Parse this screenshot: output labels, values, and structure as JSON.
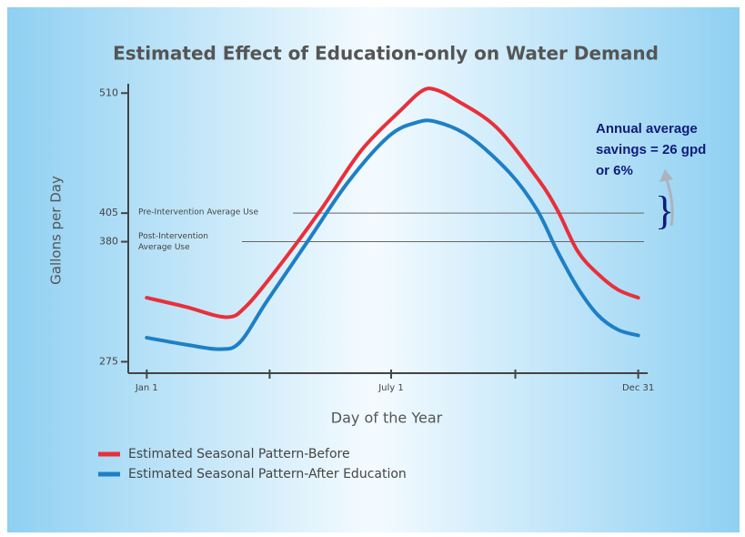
{
  "chart_data": {
    "type": "line",
    "title": "Estimated Effect of Education-only on Water Demand",
    "y_label": "Gallons per Day",
    "x_label": "Day of the Year",
    "xlim": [
      -10,
      372
    ],
    "xticks": [
      {
        "value": 1,
        "label": "Jan 1"
      },
      {
        "value": 182,
        "label": "July 1"
      },
      {
        "value": 365,
        "label": "Dec 31"
      }
    ],
    "xminorticks": [
      92,
      274
    ],
    "ylim": [
      265,
      515
    ],
    "yticks": [
      275,
      380,
      405,
      510
    ],
    "series": [
      {
        "name": "Estimated Seasonal Pattern-Before",
        "color": "#e8303a",
        "x": [
          1,
          30,
          60,
          75,
          100,
          130,
          160,
          190,
          205,
          215,
          230,
          260,
          290,
          305,
          320,
          335,
          350,
          365
        ],
        "values": [
          331,
          323,
          314,
          324,
          360,
          408,
          460,
          496,
          512,
          513,
          504,
          480,
          436,
          408,
          372,
          352,
          338,
          331
        ]
      },
      {
        "name": "Estimated Seasonal Pattern-After Education",
        "color": "#1e7fc6",
        "x": [
          1,
          30,
          55,
          70,
          90,
          120,
          150,
          180,
          200,
          215,
          240,
          270,
          290,
          305,
          320,
          335,
          350,
          365
        ],
        "values": [
          296,
          290,
          286,
          292,
          328,
          380,
          432,
          472,
          484,
          485,
          472,
          440,
          408,
          372,
          340,
          316,
          303,
          298
        ]
      }
    ],
    "reference_lines": [
      {
        "value": 405,
        "label": [
          "Pre-Intervention Average Use"
        ]
      },
      {
        "value": 380,
        "label": [
          "Post-Intervention",
          "Average Use"
        ]
      }
    ],
    "annotation": [
      "Annual average",
      "savings = 26 gpd",
      "or 6%"
    ]
  }
}
